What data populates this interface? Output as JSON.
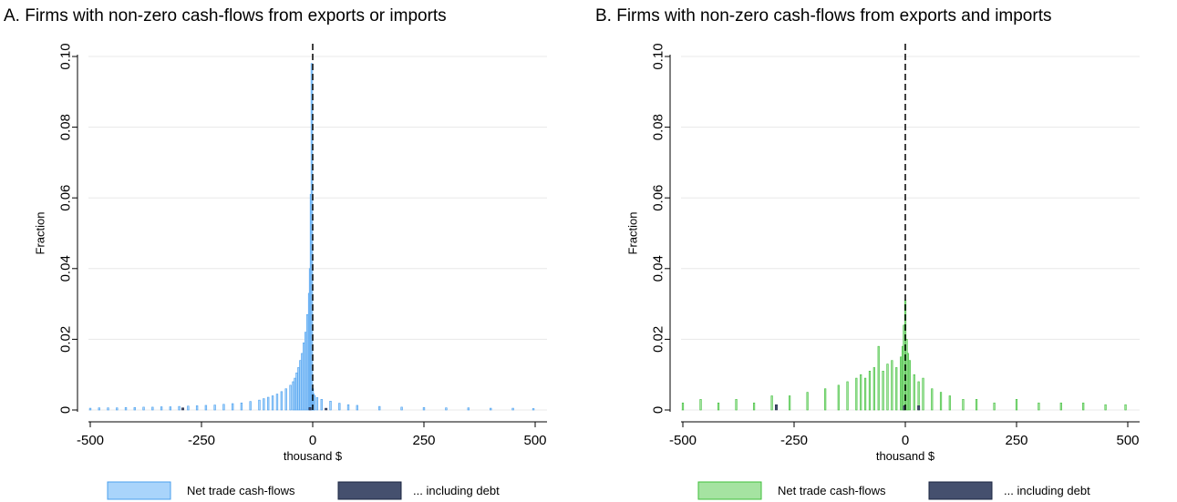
{
  "colors": {
    "series_a_fill": "#a9d4fb",
    "series_a_stroke": "#4a9fee",
    "series_b_fill": "#a5e3a1",
    "series_b_stroke": "#3fbf3a",
    "debt_fill": "#45506e",
    "debt_stroke": "#1a2440",
    "gridline": "#e8e8e8",
    "refline": "#000000"
  },
  "chart_data": [
    {
      "type": "bar",
      "subtype": "histogram",
      "title": "A. Firms with non-zero cash-flows from exports or imports",
      "xlabel": "thousand $",
      "ylabel": "Fraction",
      "xlim": [
        -500,
        500
      ],
      "ylim": [
        0,
        0.1
      ],
      "xticks": [
        "-500",
        "-250",
        "0",
        "250",
        "500"
      ],
      "yticks": [
        "0",
        "0.02",
        "0.04",
        "0.06",
        "0.08",
        "0.10"
      ],
      "grid": true,
      "reference_line": {
        "x": 0,
        "style": "dashed"
      },
      "legend_position": "bottom",
      "bin_width": 4,
      "series": [
        {
          "name": "Net trade cash-flows",
          "bins": [
            [
              -500,
              0.0005
            ],
            [
              -480,
              0.0006
            ],
            [
              -460,
              0.0006
            ],
            [
              -440,
              0.0006
            ],
            [
              -420,
              0.0007
            ],
            [
              -400,
              0.0007
            ],
            [
              -380,
              0.0008
            ],
            [
              -360,
              0.0008
            ],
            [
              -340,
              0.0009
            ],
            [
              -320,
              0.0009
            ],
            [
              -300,
              0.001
            ],
            [
              -280,
              0.0011
            ],
            [
              -260,
              0.0012
            ],
            [
              -240,
              0.0013
            ],
            [
              -220,
              0.0014
            ],
            [
              -200,
              0.0016
            ],
            [
              -180,
              0.0018
            ],
            [
              -160,
              0.002
            ],
            [
              -140,
              0.0024
            ],
            [
              -120,
              0.0028
            ],
            [
              -110,
              0.0032
            ],
            [
              -100,
              0.0036
            ],
            [
              -90,
              0.004
            ],
            [
              -80,
              0.0045
            ],
            [
              -70,
              0.0052
            ],
            [
              -60,
              0.006
            ],
            [
              -50,
              0.007
            ],
            [
              -44,
              0.008
            ],
            [
              -40,
              0.009
            ],
            [
              -36,
              0.0105
            ],
            [
              -32,
              0.012
            ],
            [
              -28,
              0.014
            ],
            [
              -24,
              0.016
            ],
            [
              -20,
              0.019
            ],
            [
              -16,
              0.022
            ],
            [
              -12,
              0.027
            ],
            [
              -8,
              0.033
            ],
            [
              -6,
              0.04
            ],
            [
              -4,
              0.061
            ],
            [
              -2,
              0.098
            ],
            [
              0,
              0.006
            ],
            [
              2,
              0.0045
            ],
            [
              4,
              0.004
            ],
            [
              10,
              0.0035
            ],
            [
              20,
              0.003
            ],
            [
              40,
              0.0025
            ],
            [
              60,
              0.0019
            ],
            [
              80,
              0.0015
            ],
            [
              100,
              0.0013
            ],
            [
              150,
              0.001
            ],
            [
              200,
              0.0008
            ],
            [
              250,
              0.0007
            ],
            [
              300,
              0.0006
            ],
            [
              350,
              0.0006
            ],
            [
              400,
              0.0005
            ],
            [
              450,
              0.0005
            ],
            [
              496,
              0.0004
            ]
          ]
        },
        {
          "name": "... including debt",
          "bins": [
            [
              -292,
              0.0006
            ],
            [
              -6,
              0.0007
            ],
            [
              30,
              0.0005
            ]
          ]
        }
      ]
    },
    {
      "type": "bar",
      "subtype": "histogram",
      "title": "B. Firms with non-zero cash-flows from exports and imports",
      "xlabel": "thousand $",
      "ylabel": "Fraction",
      "xlim": [
        -500,
        500
      ],
      "ylim": [
        0,
        0.1
      ],
      "xticks": [
        "-500",
        "-250",
        "0",
        "250",
        "500"
      ],
      "yticks": [
        "0",
        "0.02",
        "0.04",
        "0.06",
        "0.08",
        "0.10"
      ],
      "grid": true,
      "reference_line": {
        "x": 0,
        "style": "dashed"
      },
      "legend_position": "bottom",
      "bin_width": 3,
      "series": [
        {
          "name": "Net trade cash-flows",
          "bins": [
            [
              -500,
              0.002
            ],
            [
              -460,
              0.003
            ],
            [
              -420,
              0.002
            ],
            [
              -380,
              0.003
            ],
            [
              -340,
              0.002
            ],
            [
              -300,
              0.004
            ],
            [
              -260,
              0.004
            ],
            [
              -220,
              0.005
            ],
            [
              -180,
              0.006
            ],
            [
              -150,
              0.007
            ],
            [
              -130,
              0.008
            ],
            [
              -110,
              0.009
            ],
            [
              -100,
              0.01
            ],
            [
              -90,
              0.009
            ],
            [
              -80,
              0.011
            ],
            [
              -70,
              0.012
            ],
            [
              -60,
              0.018
            ],
            [
              -50,
              0.011
            ],
            [
              -40,
              0.013
            ],
            [
              -30,
              0.014
            ],
            [
              -20,
              0.012
            ],
            [
              -10,
              0.015
            ],
            [
              -6,
              0.018
            ],
            [
              -3,
              0.024
            ],
            [
              0,
              0.031
            ],
            [
              3,
              0.02
            ],
            [
              6,
              0.016
            ],
            [
              10,
              0.014
            ],
            [
              20,
              0.01
            ],
            [
              30,
              0.008
            ],
            [
              40,
              0.009
            ],
            [
              60,
              0.006
            ],
            [
              80,
              0.005
            ],
            [
              100,
              0.004
            ],
            [
              130,
              0.003
            ],
            [
              160,
              0.003
            ],
            [
              200,
              0.002
            ],
            [
              250,
              0.003
            ],
            [
              300,
              0.002
            ],
            [
              350,
              0.002
            ],
            [
              400,
              0.002
            ],
            [
              450,
              0.0015
            ],
            [
              495,
              0.0015
            ]
          ]
        },
        {
          "name": "... including debt",
          "bins": [
            [
              -290,
              0.0015
            ],
            [
              -2,
              0.0012
            ],
            [
              30,
              0.0012
            ]
          ]
        }
      ]
    }
  ]
}
